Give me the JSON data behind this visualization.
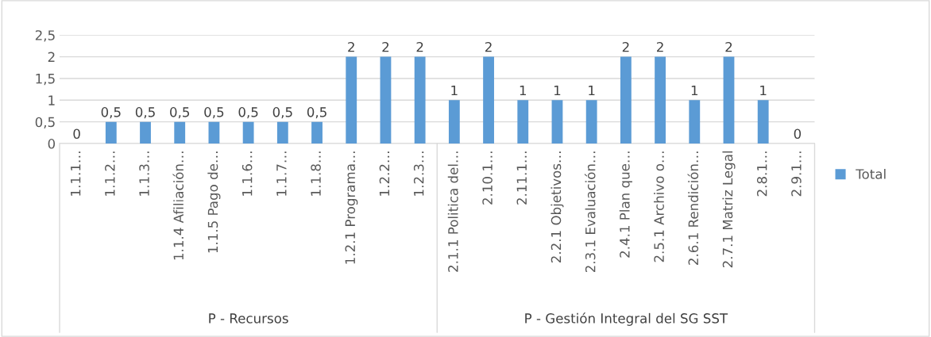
{
  "chart_data": {
    "type": "bar",
    "categories": [
      "1.1.1…",
      "1.1.2…",
      "1.1.3…",
      "1.1.4 Afiliación…",
      "1.1.5 Pago de…",
      "1.1.6…",
      "1.1.7…",
      "1.1.8…",
      "1.2.1 Programa…",
      "1.2.2…",
      "1.2.3…",
      "2.1.1 Politica del…",
      "2.10.1…",
      "2.11.1…",
      "2.2.1 Objetivos…",
      "2.3.1 Evaluación…",
      "2.4.1 Plan que…",
      "2.5.1 Archivo o…",
      "2.6.1 Rendición…",
      "2.7.1 Matriz Legal",
      "2.8.1…",
      "2.9.1…"
    ],
    "series": [
      {
        "name": "Total",
        "color": "#5b9bd5",
        "values": [
          0,
          0.5,
          0.5,
          0.5,
          0.5,
          0.5,
          0.5,
          0.5,
          2,
          2,
          2,
          1,
          2,
          1,
          1,
          1,
          2,
          2,
          1,
          2,
          1,
          0
        ],
        "value_labels": [
          "0",
          "0,5",
          "0,5",
          "0,5",
          "0,5",
          "0,5",
          "0,5",
          "0,5",
          "2",
          "2",
          "2",
          "1",
          "2",
          "1",
          "1",
          "1",
          "2",
          "2",
          "1",
          "2",
          "1",
          "0"
        ]
      }
    ],
    "ylim": [
      0,
      2.5
    ],
    "yticks": [
      0,
      {
        "value": 0.5,
        "label": "0,5"
      },
      1,
      {
        "value": 1.5,
        "label": "1,5"
      },
      2,
      {
        "value": 2.5,
        "label": "2,5"
      }
    ],
    "grid": "y",
    "legend": "right",
    "annotations": [
      "P - Recursos",
      "P - Gestión Integral del SG SST"
    ]
  }
}
